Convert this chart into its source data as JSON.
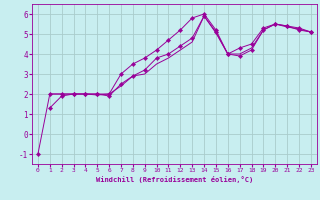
{
  "xlabel": "Windchill (Refroidissement éolien,°C)",
  "bg_color": "#c8eef0",
  "grid_color": "#aacccc",
  "line_color": "#990099",
  "xlim": [
    -0.5,
    23.5
  ],
  "ylim": [
    -1.5,
    6.5
  ],
  "yticks": [
    -1,
    0,
    1,
    2,
    3,
    4,
    5,
    6
  ],
  "xticks": [
    0,
    1,
    2,
    3,
    4,
    5,
    6,
    7,
    8,
    9,
    10,
    11,
    12,
    13,
    14,
    15,
    16,
    17,
    18,
    19,
    20,
    21,
    22,
    23
  ],
  "series": [
    {
      "x": [
        0,
        1,
        2,
        3,
        4,
        5,
        6,
        7,
        8,
        9,
        10,
        11,
        12,
        13,
        14,
        15,
        16,
        17,
        18,
        19,
        20,
        21,
        22,
        23
      ],
      "y": [
        -1,
        2,
        2,
        2,
        2,
        2,
        2,
        3,
        3.5,
        3.8,
        4.2,
        4.7,
        5.2,
        5.8,
        6.0,
        5.2,
        4.0,
        4.3,
        4.5,
        5.3,
        5.5,
        5.4,
        5.2,
        5.1
      ],
      "marker": "D",
      "ms": 2.2
    },
    {
      "x": [
        1,
        2,
        3,
        4,
        5,
        6,
        7,
        8,
        9,
        10,
        11,
        12,
        13,
        14,
        15,
        16,
        17,
        18,
        19,
        20,
        21,
        22,
        23
      ],
      "y": [
        1.3,
        1.9,
        2.0,
        2.0,
        2.0,
        1.9,
        2.5,
        2.9,
        3.2,
        3.8,
        4.0,
        4.4,
        4.8,
        5.9,
        5.1,
        4.0,
        3.9,
        4.2,
        5.2,
        5.5,
        5.4,
        5.3,
        5.1
      ],
      "marker": "D",
      "ms": 2.2
    },
    {
      "x": [
        1,
        2,
        3,
        4,
        5,
        6,
        7,
        8,
        9,
        10,
        11,
        12,
        13,
        14,
        15,
        16,
        17,
        18,
        19,
        20,
        21,
        22,
        23
      ],
      "y": [
        2.0,
        2.0,
        2.0,
        2.0,
        1.95,
        2.0,
        2.4,
        2.9,
        3.0,
        3.5,
        3.8,
        4.2,
        4.6,
        5.9,
        5.05,
        4.0,
        4.0,
        4.3,
        5.2,
        5.5,
        5.35,
        5.25,
        5.1
      ],
      "marker": null,
      "ms": 0
    }
  ],
  "lw": 0.7,
  "xlabel_fontsize": 5.0,
  "tick_fontsize_x": 4.5,
  "tick_fontsize_y": 5.5
}
